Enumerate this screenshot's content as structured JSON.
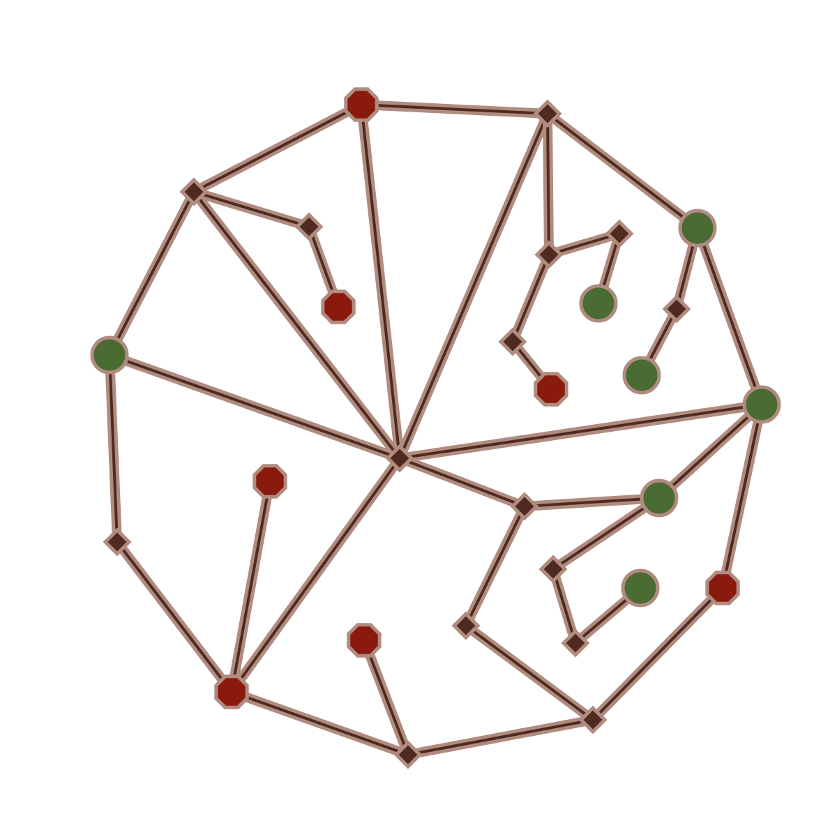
{
  "colors": {
    "background": "#ffffff",
    "edge_outline": "#b08c80",
    "edge_core": "#4f2a20",
    "node_red": "#8b1a0e",
    "node_green": "#4a6b32",
    "node_junction": "#4f2a20"
  },
  "node_types": {
    "red": "red-octagon-node",
    "green": "green-circle-node",
    "junction": "dark-diamond-junction"
  },
  "nodes": [
    {
      "id": "hub",
      "type": "junction"
    },
    {
      "id": "top-red",
      "type": "red"
    },
    {
      "id": "top-right-junction",
      "type": "junction"
    },
    {
      "id": "upper-right-green",
      "type": "green"
    },
    {
      "id": "right-green",
      "type": "green"
    },
    {
      "id": "lower-right-red",
      "type": "red"
    },
    {
      "id": "bottom-right-junction",
      "type": "junction"
    },
    {
      "id": "bottom-junction",
      "type": "junction"
    },
    {
      "id": "bottom-left-red",
      "type": "red"
    },
    {
      "id": "left-lower-junction",
      "type": "junction"
    },
    {
      "id": "left-green",
      "type": "green"
    },
    {
      "id": "upper-left-junction",
      "type": "junction"
    },
    {
      "id": "branch-a-junction",
      "type": "junction"
    },
    {
      "id": "branch-a-red",
      "type": "red"
    },
    {
      "id": "branch-b-junction",
      "type": "junction"
    },
    {
      "id": "branch-b-tip-junction",
      "type": "junction"
    },
    {
      "id": "branch-b-green",
      "type": "green"
    },
    {
      "id": "branch-c-junction",
      "type": "junction"
    },
    {
      "id": "branch-c-red",
      "type": "red"
    },
    {
      "id": "branch-d-junction",
      "type": "junction"
    },
    {
      "id": "branch-d-green",
      "type": "green"
    },
    {
      "id": "mid-right-junction",
      "type": "junction"
    },
    {
      "id": "mid-right-green",
      "type": "green"
    },
    {
      "id": "branch-e-junction",
      "type": "junction"
    },
    {
      "id": "branch-e-tip-junction",
      "type": "junction"
    },
    {
      "id": "branch-e-green",
      "type": "green"
    },
    {
      "id": "lower-mid-junction",
      "type": "junction"
    },
    {
      "id": "floating-left-red",
      "type": "red"
    },
    {
      "id": "floating-bottom-red",
      "type": "red"
    }
  ],
  "edges": [
    [
      "top-red",
      "top-right-junction"
    ],
    [
      "top-right-junction",
      "upper-right-green"
    ],
    [
      "upper-right-green",
      "right-green"
    ],
    [
      "right-green",
      "lower-right-red"
    ],
    [
      "lower-right-red",
      "bottom-right-junction"
    ],
    [
      "bottom-right-junction",
      "bottom-junction"
    ],
    [
      "bottom-junction",
      "bottom-left-red"
    ],
    [
      "bottom-left-red",
      "left-lower-junction"
    ],
    [
      "left-lower-junction",
      "left-green"
    ],
    [
      "left-green",
      "upper-left-junction"
    ],
    [
      "upper-left-junction",
      "top-red"
    ],
    [
      "hub",
      "top-red"
    ],
    [
      "hub",
      "top-right-junction"
    ],
    [
      "hub",
      "upper-left-junction"
    ],
    [
      "hub",
      "left-green"
    ],
    [
      "hub",
      "right-green"
    ],
    [
      "hub",
      "bottom-left-red"
    ],
    [
      "hub",
      "mid-right-junction"
    ],
    [
      "upper-left-junction",
      "branch-a-junction"
    ],
    [
      "branch-a-junction",
      "branch-a-red"
    ],
    [
      "top-right-junction",
      "branch-b-junction"
    ],
    [
      "branch-b-junction",
      "branch-b-tip-junction"
    ],
    [
      "branch-b-tip-junction",
      "branch-b-green"
    ],
    [
      "branch-b-junction",
      "branch-c-junction"
    ],
    [
      "branch-c-junction",
      "branch-c-red"
    ],
    [
      "upper-right-green",
      "branch-d-junction"
    ],
    [
      "branch-d-junction",
      "branch-d-green"
    ],
    [
      "mid-right-junction",
      "mid-right-green"
    ],
    [
      "mid-right-green",
      "right-green"
    ],
    [
      "mid-right-green",
      "branch-e-junction"
    ],
    [
      "branch-e-junction",
      "branch-e-tip-junction"
    ],
    [
      "branch-e-tip-junction",
      "branch-e-green"
    ],
    [
      "mid-right-junction",
      "lower-mid-junction"
    ],
    [
      "lower-mid-junction",
      "bottom-right-junction"
    ],
    [
      "bottom-left-red",
      "floating-left-red"
    ],
    [
      "bottom-junction",
      "floating-bottom-red"
    ]
  ]
}
